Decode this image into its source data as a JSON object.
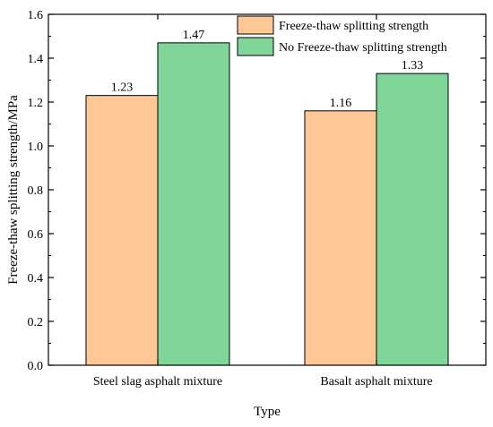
{
  "chart_data": {
    "type": "bar",
    "xlabel": "Type",
    "ylabel": "Freeze-thaw splitting strength/MPa",
    "categories": [
      "Steel slag asphalt mixture",
      "Basalt asphalt mixture"
    ],
    "series": [
      {
        "name": "Freeze-thaw splitting strength",
        "values": [
          1.23,
          1.16
        ],
        "labels": [
          "1.23",
          "1.16"
        ],
        "color": "#FDC896"
      },
      {
        "name": "No Freeze-thaw splitting strength",
        "values": [
          1.47,
          1.33
        ],
        "labels": [
          "1.47",
          "1.33"
        ],
        "color": "#80D699"
      }
    ],
    "ylim": [
      0.0,
      1.6
    ],
    "yticks": [
      0.0,
      0.2,
      0.4,
      0.6,
      0.8,
      1.0,
      1.2,
      1.4,
      1.6
    ],
    "ytick_labels": [
      "0.0",
      "0.2",
      "0.4",
      "0.6",
      "0.8",
      "1.0",
      "1.2",
      "1.4",
      "1.6"
    ],
    "grid": false,
    "legend_position": "top-right"
  }
}
